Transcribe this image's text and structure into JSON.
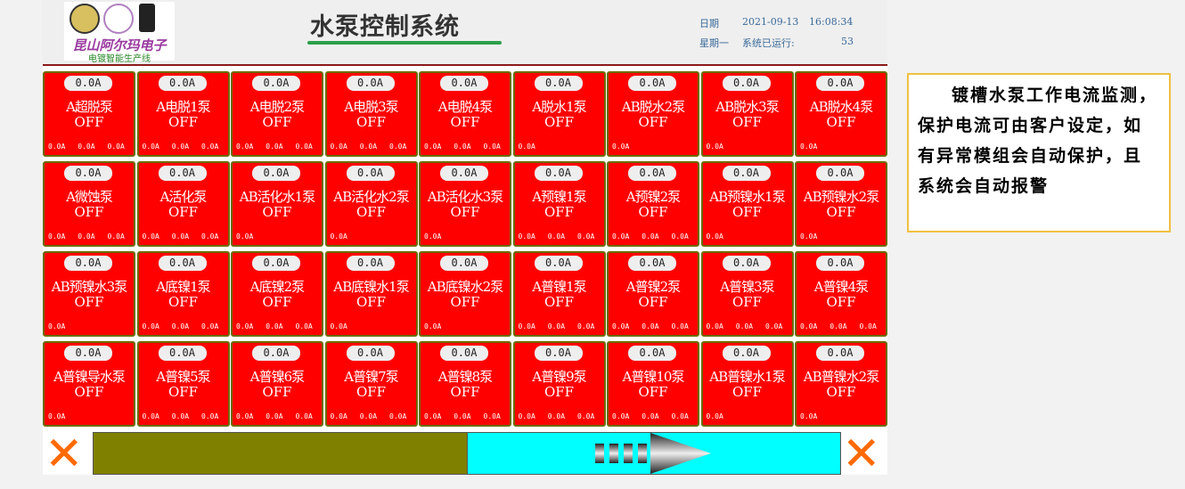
{
  "header": {
    "title": "水泵控制系统",
    "date_label": "日期",
    "date": "2021-09-13",
    "time": "16:08:34",
    "weekday": "星期一",
    "runtime_label": "系统已运行:",
    "runtime": "53",
    "logo_text": "昆山阿尔玛电子",
    "logo_subtitle": "电镀智能生产线"
  },
  "colors": {
    "card_off": "#ff0000",
    "progress_fill": "#808000",
    "progress_track": "#00ffff",
    "close": "#ff6a00"
  },
  "pumps": [
    {
      "name": "A超脱泵",
      "current": "0.0A",
      "status": "OFF",
      "readings": [
        "0.0A",
        "0.0A",
        "0.0A"
      ]
    },
    {
      "name": "A电脱1泵",
      "current": "0.0A",
      "status": "OFF",
      "readings": [
        "0.0A",
        "0.0A",
        "0.0A"
      ]
    },
    {
      "name": "A电脱2泵",
      "current": "0.0A",
      "status": "OFF",
      "readings": [
        "0.0A",
        "0.0A",
        "0.0A"
      ]
    },
    {
      "name": "A电脱3泵",
      "current": "0.0A",
      "status": "OFF",
      "readings": [
        "0.0A",
        "0.0A",
        "0.0A"
      ]
    },
    {
      "name": "A电脱4泵",
      "current": "0.0A",
      "status": "OFF",
      "readings": [
        "0.0A",
        "0.0A",
        "0.0A"
      ]
    },
    {
      "name": "A脱水1泵",
      "current": "0.0A",
      "status": "OFF",
      "readings": [
        "0.0A"
      ]
    },
    {
      "name": "AB脱水2泵",
      "current": "0.0A",
      "status": "OFF",
      "readings": [
        "0.0A"
      ]
    },
    {
      "name": "AB脱水3泵",
      "current": "0.0A",
      "status": "OFF",
      "readings": [
        "0.0A"
      ]
    },
    {
      "name": "AB脱水4泵",
      "current": "0.0A",
      "status": "OFF",
      "readings": [
        "0.0A"
      ]
    },
    {
      "name": "A微蚀泵",
      "current": "0.0A",
      "status": "OFF",
      "readings": [
        "0.0A",
        "0.0A",
        "0.0A"
      ]
    },
    {
      "name": "A活化泵",
      "current": "0.0A",
      "status": "OFF",
      "readings": [
        "0.0A",
        "0.0A",
        "0.0A"
      ]
    },
    {
      "name": "AB活化水1泵",
      "current": "0.0A",
      "status": "OFF",
      "readings": [
        "0.0A"
      ]
    },
    {
      "name": "AB活化水2泵",
      "current": "0.0A",
      "status": "OFF",
      "readings": [
        "0.0A"
      ]
    },
    {
      "name": "AB活化水3泵",
      "current": "0.0A",
      "status": "OFF",
      "readings": [
        "0.0A"
      ]
    },
    {
      "name": "A预镍1泵",
      "current": "0.0A",
      "status": "OFF",
      "readings": [
        "0.0A",
        "0.0A",
        "0.0A"
      ]
    },
    {
      "name": "A预镍2泵",
      "current": "0.0A",
      "status": "OFF",
      "readings": [
        "0.0A",
        "0.0A",
        "0.0A"
      ]
    },
    {
      "name": "AB预镍水1泵",
      "current": "0.0A",
      "status": "OFF",
      "readings": [
        "0.0A"
      ]
    },
    {
      "name": "AB预镍水2泵",
      "current": "0.0A",
      "status": "OFF",
      "readings": [
        "0.0A"
      ]
    },
    {
      "name": "AB预镍水3泵",
      "current": "0.0A",
      "status": "OFF",
      "readings": [
        "0.0A"
      ]
    },
    {
      "name": "A底镍1泵",
      "current": "0.0A",
      "status": "OFF",
      "readings": [
        "0.0A",
        "0.0A",
        "0.0A"
      ]
    },
    {
      "name": "A底镍2泵",
      "current": "0.0A",
      "status": "OFF",
      "readings": [
        "0.0A",
        "0.0A",
        "0.0A"
      ]
    },
    {
      "name": "AB底镍水1泵",
      "current": "0.0A",
      "status": "OFF",
      "readings": [
        "0.0A"
      ]
    },
    {
      "name": "AB底镍水2泵",
      "current": "0.0A",
      "status": "OFF",
      "readings": [
        "0.0A"
      ]
    },
    {
      "name": "A普镍1泵",
      "current": "0.0A",
      "status": "OFF",
      "readings": [
        "0.0A",
        "0.0A",
        "0.0A"
      ]
    },
    {
      "name": "A普镍2泵",
      "current": "0.0A",
      "status": "OFF",
      "readings": [
        "0.0A",
        "0.0A",
        "0.0A"
      ]
    },
    {
      "name": "A普镍3泵",
      "current": "0.0A",
      "status": "OFF",
      "readings": [
        "0.0A",
        "0.0A",
        "0.0A"
      ]
    },
    {
      "name": "A普镍4泵",
      "current": "0.0A",
      "status": "OFF",
      "readings": [
        "0.0A",
        "0.0A",
        "0.0A"
      ]
    },
    {
      "name": "A普镍导水泵",
      "current": "0.0A",
      "status": "OFF",
      "readings": [
        "0.0A"
      ]
    },
    {
      "name": "A普镍5泵",
      "current": "0.0A",
      "status": "OFF",
      "readings": [
        "0.0A",
        "0.0A",
        "0.0A"
      ]
    },
    {
      "name": "A普镍6泵",
      "current": "0.0A",
      "status": "OFF",
      "readings": [
        "0.0A",
        "0.0A",
        "0.0A"
      ]
    },
    {
      "name": "A普镍7泵",
      "current": "0.0A",
      "status": "OFF",
      "readings": [
        "0.0A",
        "0.0A",
        "0.0A"
      ]
    },
    {
      "name": "A普镍8泵",
      "current": "0.0A",
      "status": "OFF",
      "readings": [
        "0.0A",
        "0.0A",
        "0.0A"
      ]
    },
    {
      "name": "A普镍9泵",
      "current": "0.0A",
      "status": "OFF",
      "readings": [
        "0.0A",
        "0.0A",
        "0.0A"
      ]
    },
    {
      "name": "A普镍10泵",
      "current": "0.0A",
      "status": "OFF",
      "readings": [
        "0.0A",
        "0.0A",
        "0.0A"
      ]
    },
    {
      "name": "AB普镍水1泵",
      "current": "0.0A",
      "status": "OFF",
      "readings": [
        "0.0A"
      ]
    },
    {
      "name": "AB普镍水2泵",
      "current": "0.0A",
      "status": "OFF",
      "readings": [
        "0.0A"
      ]
    }
  ],
  "progress": {
    "percent": 50
  },
  "note": "镀槽水泵工作电流监测，保护电流可由客户设定，如有异常模组会自动保护，且系统会自动报警"
}
